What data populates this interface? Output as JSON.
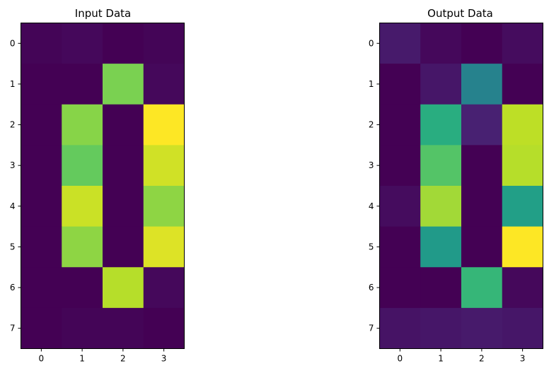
{
  "chart_data": [
    {
      "type": "heatmap",
      "title": "Input Data",
      "x_ticks": [
        "0",
        "1",
        "2",
        "3"
      ],
      "y_ticks": [
        "0",
        "1",
        "2",
        "3",
        "4",
        "5",
        "6",
        "7"
      ],
      "values": [
        [
          0.01,
          0.02,
          0.0,
          0.01
        ],
        [
          0.0,
          0.0,
          0.8,
          0.02
        ],
        [
          0.0,
          0.82,
          0.0,
          1.0
        ],
        [
          0.0,
          0.76,
          0.0,
          0.93
        ],
        [
          0.0,
          0.92,
          0.0,
          0.83
        ],
        [
          0.0,
          0.83,
          0.0,
          0.95
        ],
        [
          0.0,
          0.0,
          0.89,
          0.02
        ],
        [
          0.0,
          0.01,
          0.01,
          0.0
        ]
      ],
      "colormap": "viridis",
      "vlim": [
        0,
        1
      ]
    },
    {
      "type": "heatmap",
      "title": "Output Data",
      "x_ticks": [
        "0",
        "1",
        "2",
        "3"
      ],
      "y_ticks": [
        "0",
        "1",
        "2",
        "3",
        "4",
        "5",
        "6",
        "7"
      ],
      "values": [
        [
          0.07,
          0.02,
          0.0,
          0.03
        ],
        [
          0.0,
          0.06,
          0.44,
          0.0
        ],
        [
          0.0,
          0.62,
          0.09,
          0.9
        ],
        [
          0.0,
          0.73,
          0.0,
          0.89
        ],
        [
          0.03,
          0.86,
          0.0,
          0.56
        ],
        [
          0.0,
          0.54,
          0.0,
          1.0
        ],
        [
          0.0,
          0.0,
          0.66,
          0.02
        ],
        [
          0.05,
          0.06,
          0.07,
          0.06
        ]
      ],
      "colormap": "viridis",
      "vlim": [
        0,
        1
      ]
    }
  ]
}
